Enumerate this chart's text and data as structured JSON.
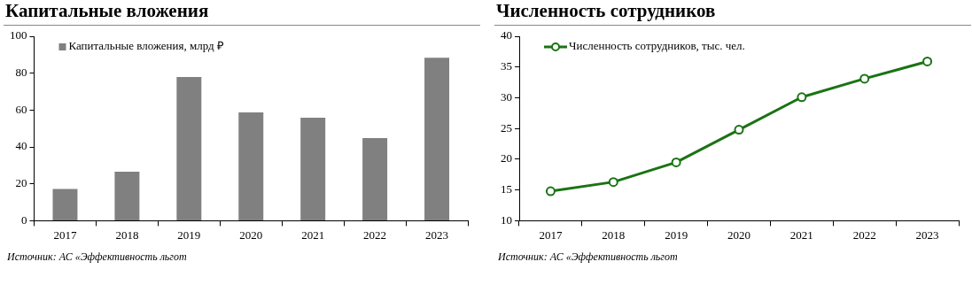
{
  "chart_data": [
    {
      "type": "bar",
      "title": "Капитальные вложения",
      "categories": [
        "2017",
        "2018",
        "2019",
        "2020",
        "2021",
        "2022",
        "2023"
      ],
      "series": [
        {
          "name": "Капитальные вложения, млрд ₽",
          "color": "#808080",
          "values": [
            17.2,
            26.6,
            77.9,
            58.7,
            55.9,
            44.8,
            88.4
          ]
        }
      ],
      "ylim": [
        0,
        100
      ],
      "yticks": [
        0,
        20,
        40,
        60,
        80,
        100
      ],
      "grid": false,
      "legend": "top left",
      "annotations": [
        "Источник: АС «Эффективность льгот"
      ]
    },
    {
      "type": "line",
      "title": "Численность сотрудников",
      "categories": [
        "2017",
        "2018",
        "2019",
        "2020",
        "2021",
        "2022",
        "2023"
      ],
      "series": [
        {
          "name": "Численность сотрудников, тыс. чел.",
          "color": "#1a7314",
          "values": [
            14.8,
            16.3,
            19.5,
            24.8,
            30.1,
            33.1,
            35.9
          ]
        }
      ],
      "ylim": [
        10,
        40
      ],
      "yticks": [
        10,
        15,
        20,
        25,
        30,
        35,
        40
      ],
      "grid": false,
      "legend": "top left",
      "marker": "circle",
      "annotations": [
        "Источник: АС «Эффективность льгот"
      ]
    }
  ]
}
